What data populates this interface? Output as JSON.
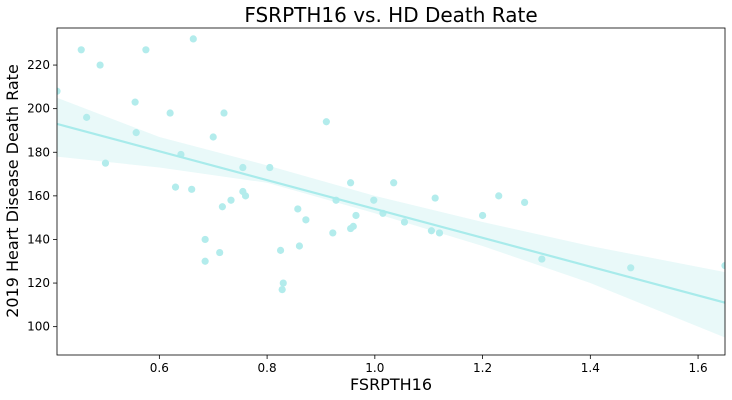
{
  "chart_data": {
    "type": "scatter",
    "title": "FSRPTH16 vs. HD Death Rate",
    "xlabel": "FSRPTH16",
    "ylabel": "2019 Heart Disease Death Rate",
    "xlim": [
      0.41,
      1.65
    ],
    "ylim": [
      87,
      237
    ],
    "xticks": [
      0.6,
      0.8,
      1.0,
      1.2,
      1.4,
      1.6
    ],
    "xtick_labels": [
      "0.6",
      "0.8",
      "1.0",
      "1.2",
      "1.4",
      "1.6"
    ],
    "yticks": [
      100,
      120,
      140,
      160,
      180,
      200,
      220
    ],
    "ytick_labels": [
      "100",
      "120",
      "140",
      "160",
      "180",
      "200",
      "220"
    ],
    "grid": false,
    "colors": {
      "points": "#b3ecec",
      "regression_line": "#a8ebeb",
      "confidence_band": "#e9f9f9"
    },
    "points": [
      {
        "x": 0.41,
        "y": 208
      },
      {
        "x": 0.455,
        "y": 227
      },
      {
        "x": 0.465,
        "y": 196
      },
      {
        "x": 0.49,
        "y": 220
      },
      {
        "x": 0.5,
        "y": 175
      },
      {
        "x": 0.555,
        "y": 203
      },
      {
        "x": 0.557,
        "y": 189
      },
      {
        "x": 0.575,
        "y": 227
      },
      {
        "x": 0.62,
        "y": 198
      },
      {
        "x": 0.63,
        "y": 164
      },
      {
        "x": 0.64,
        "y": 179
      },
      {
        "x": 0.66,
        "y": 163
      },
      {
        "x": 0.663,
        "y": 232
      },
      {
        "x": 0.685,
        "y": 140
      },
      {
        "x": 0.685,
        "y": 130
      },
      {
        "x": 0.7,
        "y": 187
      },
      {
        "x": 0.712,
        "y": 134
      },
      {
        "x": 0.717,
        "y": 155
      },
      {
        "x": 0.72,
        "y": 198
      },
      {
        "x": 0.733,
        "y": 158
      },
      {
        "x": 0.755,
        "y": 173
      },
      {
        "x": 0.755,
        "y": 162
      },
      {
        "x": 0.76,
        "y": 160
      },
      {
        "x": 0.805,
        "y": 173
      },
      {
        "x": 0.825,
        "y": 135
      },
      {
        "x": 0.828,
        "y": 117
      },
      {
        "x": 0.83,
        "y": 120
      },
      {
        "x": 0.857,
        "y": 154
      },
      {
        "x": 0.86,
        "y": 137
      },
      {
        "x": 0.872,
        "y": 149
      },
      {
        "x": 0.91,
        "y": 194
      },
      {
        "x": 0.922,
        "y": 143
      },
      {
        "x": 0.928,
        "y": 158
      },
      {
        "x": 0.955,
        "y": 166
      },
      {
        "x": 0.955,
        "y": 145
      },
      {
        "x": 0.96,
        "y": 146
      },
      {
        "x": 0.965,
        "y": 151
      },
      {
        "x": 0.998,
        "y": 158
      },
      {
        "x": 1.015,
        "y": 152
      },
      {
        "x": 1.035,
        "y": 166
      },
      {
        "x": 1.055,
        "y": 148
      },
      {
        "x": 1.105,
        "y": 144
      },
      {
        "x": 1.112,
        "y": 159
      },
      {
        "x": 1.12,
        "y": 143
      },
      {
        "x": 1.2,
        "y": 151
      },
      {
        "x": 1.23,
        "y": 160
      },
      {
        "x": 1.278,
        "y": 157
      },
      {
        "x": 1.31,
        "y": 131
      },
      {
        "x": 1.475,
        "y": 127
      },
      {
        "x": 1.65,
        "y": 128
      }
    ],
    "regression": {
      "x": [
        0.41,
        1.65
      ],
      "y": [
        193,
        111
      ]
    },
    "confidence_band": {
      "x": [
        0.41,
        0.6,
        0.8,
        1.0,
        1.2,
        1.4,
        1.65
      ],
      "upper": [
        205,
        187,
        174,
        160,
        148,
        137,
        125
      ],
      "lower": [
        178,
        173,
        166,
        152,
        137,
        120,
        95
      ]
    }
  }
}
